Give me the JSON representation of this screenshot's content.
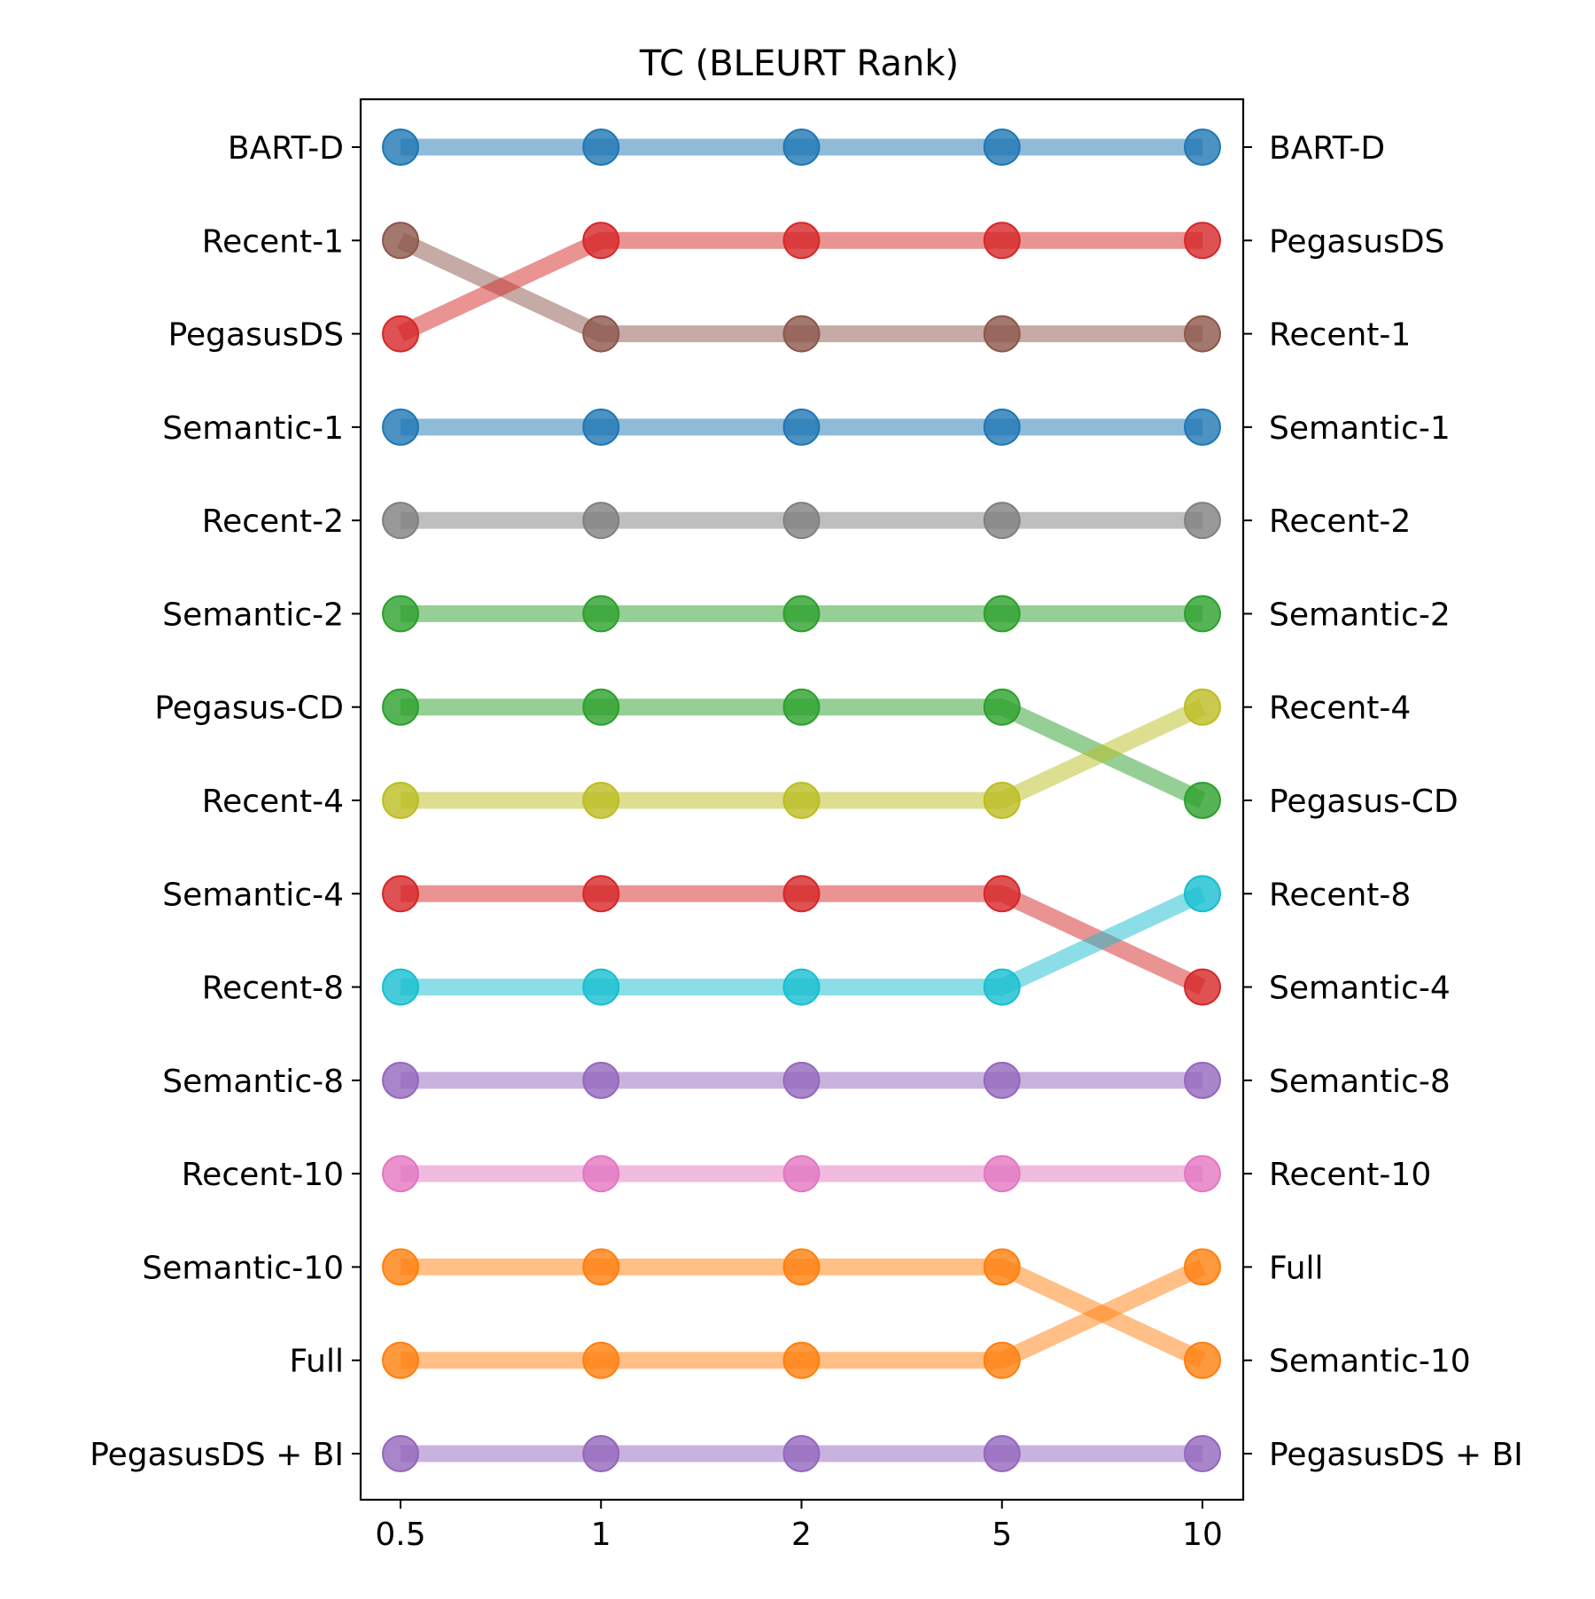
{
  "chart_data": {
    "type": "line",
    "title": "TC (BLEURT Rank)",
    "xlabel": "",
    "ylabel": "",
    "x": [
      "0.5",
      "1",
      "2",
      "5",
      "10"
    ],
    "rank_range": [
      1,
      15
    ],
    "grid": false,
    "y_left_labels": [
      "BART-D",
      "Recent-1",
      "PegasusDS",
      "Semantic-1",
      "Recent-2",
      "Semantic-2",
      "Pegasus-CD",
      "Recent-4",
      "Semantic-4",
      "Recent-8",
      "Semantic-8",
      "Recent-10",
      "Semantic-10",
      "Full",
      "PegasusDS + BI"
    ],
    "y_right_labels": [
      "BART-D",
      "PegasusDS",
      "Recent-1",
      "Semantic-1",
      "Recent-2",
      "Semantic-2",
      "Recent-4",
      "Pegasus-CD",
      "Recent-8",
      "Semantic-4",
      "Semantic-8",
      "Recent-10",
      "Full",
      "Semantic-10",
      "PegasusDS + BI"
    ],
    "series": [
      {
        "name": "BART-D",
        "color": "#1f77b4",
        "values": [
          1,
          1,
          1,
          1,
          1
        ]
      },
      {
        "name": "Recent-1",
        "color": "#8c564b",
        "values": [
          2,
          3,
          3,
          3,
          3
        ]
      },
      {
        "name": "PegasusDS",
        "color": "#d62728",
        "values": [
          3,
          2,
          2,
          2,
          2
        ]
      },
      {
        "name": "Semantic-1",
        "color": "#1f77b4",
        "values": [
          4,
          4,
          4,
          4,
          4
        ]
      },
      {
        "name": "Recent-2",
        "color": "#7f7f7f",
        "values": [
          5,
          5,
          5,
          5,
          5
        ]
      },
      {
        "name": "Semantic-2",
        "color": "#2ca02c",
        "values": [
          6,
          6,
          6,
          6,
          6
        ]
      },
      {
        "name": "Pegasus-CD",
        "color": "#2ca02c",
        "values": [
          7,
          7,
          7,
          7,
          8
        ]
      },
      {
        "name": "Recent-4",
        "color": "#bcbd22",
        "values": [
          8,
          8,
          8,
          8,
          7
        ]
      },
      {
        "name": "Semantic-4",
        "color": "#d62728",
        "values": [
          9,
          9,
          9,
          9,
          10
        ]
      },
      {
        "name": "Recent-8",
        "color": "#17becf",
        "values": [
          10,
          10,
          10,
          10,
          9
        ]
      },
      {
        "name": "Semantic-8",
        "color": "#9467bd",
        "values": [
          11,
          11,
          11,
          11,
          11
        ]
      },
      {
        "name": "Recent-10",
        "color": "#e377c2",
        "values": [
          12,
          12,
          12,
          12,
          12
        ]
      },
      {
        "name": "Semantic-10",
        "color": "#ff7f0e",
        "values": [
          13,
          13,
          13,
          13,
          14
        ]
      },
      {
        "name": "Full",
        "color": "#ff7f0e",
        "values": [
          14,
          14,
          14,
          14,
          13
        ]
      },
      {
        "name": "PegasusDS + BI",
        "color": "#9467bd",
        "values": [
          15,
          15,
          15,
          15,
          15
        ]
      }
    ]
  }
}
